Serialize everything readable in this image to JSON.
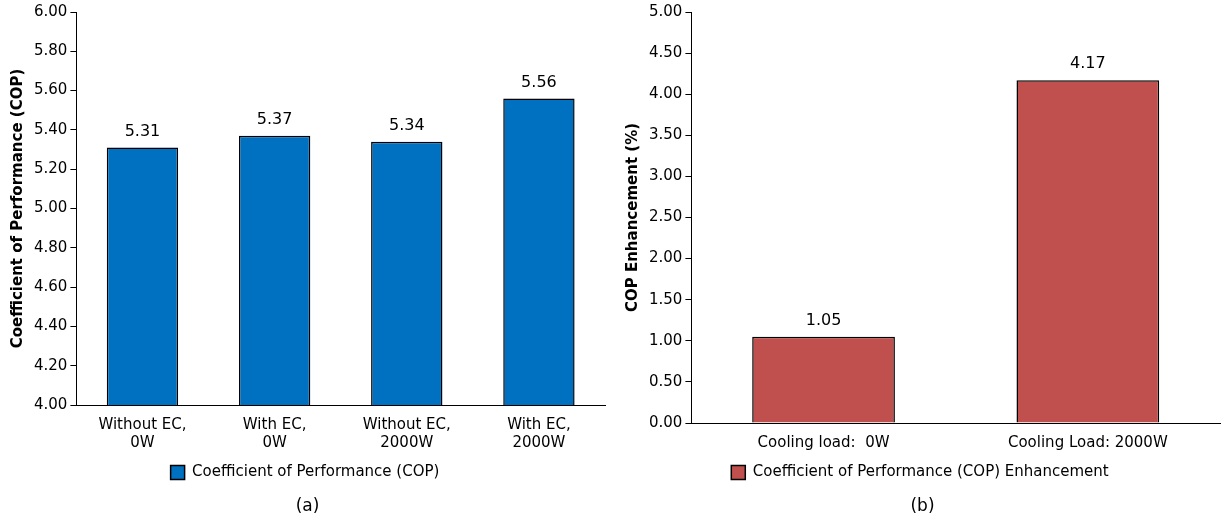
{
  "chart_data": [
    {
      "type": "bar",
      "ylabel": "Coefficient of Performance (COP)",
      "categories": [
        "Without EC, 0W",
        "With EC, 0W",
        "Without EC, 2000W",
        "With EC, 2000W"
      ],
      "series": [
        {
          "name": "Coefficient of Performance (COP)",
          "color": "#0070c0",
          "values": [
            5.31,
            5.37,
            5.34,
            5.56
          ]
        }
      ],
      "ylim": [
        4,
        6
      ],
      "yticks": [
        {
          "value": 4,
          "label": "4.00"
        },
        {
          "value": 4.2,
          "label": "4.20"
        },
        {
          "value": 4.4,
          "label": "4.40"
        },
        {
          "value": 4.6,
          "label": "4.60"
        },
        {
          "value": 4.8,
          "label": "4.80"
        },
        {
          "value": 5,
          "label": "5.00"
        },
        {
          "value": 5.2,
          "label": "5.20"
        },
        {
          "value": 5.4,
          "label": "5.40"
        },
        {
          "value": 5.6,
          "label": "5.60"
        },
        {
          "value": 5.8,
          "label": "5.80"
        },
        {
          "value": 6,
          "label": "6.00"
        }
      ],
      "data_labels": true,
      "legend": "bottom",
      "grid": false,
      "annotations": [
        "(a)"
      ]
    },
    {
      "type": "bar",
      "ylabel": "COP Enhancement (%)",
      "categories": [
        "Cooling load:  0W",
        "Cooling Load: 2000W"
      ],
      "series": [
        {
          "name": "Coefficient of Performance (COP) Enhancement",
          "color": "#c0504d",
          "values": [
            1.05,
            4.17
          ]
        }
      ],
      "ylim": [
        0,
        5
      ],
      "yticks": [
        {
          "value": 0,
          "label": "0.00"
        },
        {
          "value": 0.5,
          "label": "0.50"
        },
        {
          "value": 1,
          "label": "1.00"
        },
        {
          "value": 1.5,
          "label": "1.50"
        },
        {
          "value": 2,
          "label": "2.00"
        },
        {
          "value": 2.5,
          "label": "2.50"
        },
        {
          "value": 3,
          "label": "3.00"
        },
        {
          "value": 3.5,
          "label": "3.50"
        },
        {
          "value": 4,
          "label": "4.00"
        },
        {
          "value": 4.5,
          "label": "4.50"
        },
        {
          "value": 5,
          "label": "5.00"
        }
      ],
      "data_labels": true,
      "legend": "bottom",
      "grid": false,
      "annotations": [
        "(b)"
      ]
    }
  ]
}
